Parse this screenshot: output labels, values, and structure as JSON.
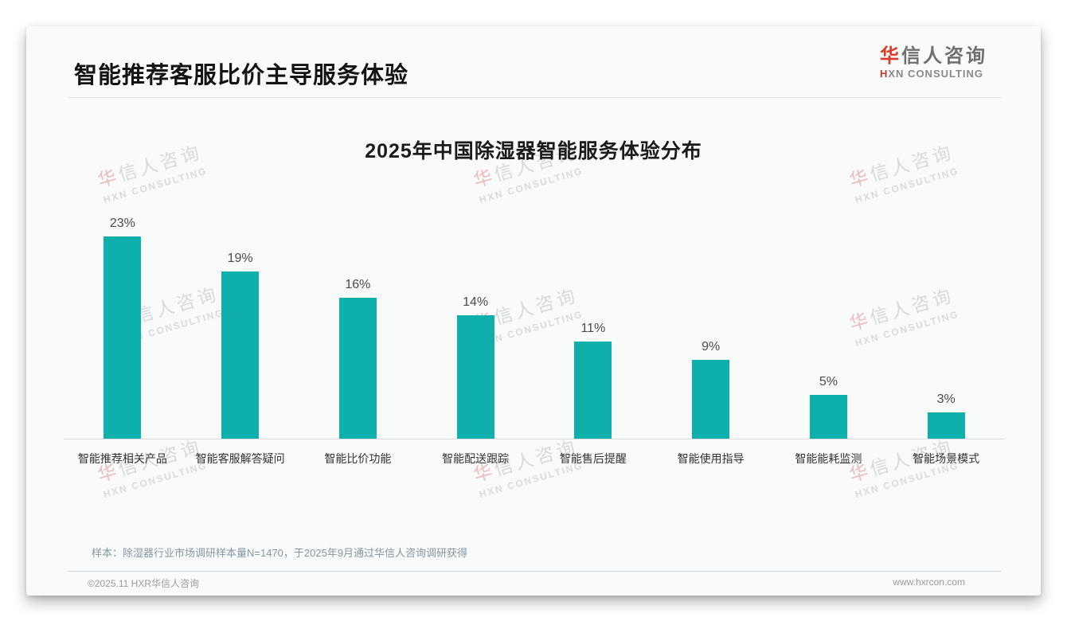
{
  "page": {
    "title": "智能推荐客服比价主导服务体验",
    "logo": {
      "cn_first": "华",
      "cn_rest": "信人咨询",
      "en_first": "H",
      "en_rest": "XN CONSULTING"
    },
    "note": "样本：除湿器行业市场调研样本量N=1470，于2025年9月通过华信人咨询调研获得",
    "footer_left": "©2025.11 HXR华信人咨询",
    "footer_right": "www.hxrcon.com",
    "watermark": {
      "cn_first": "华",
      "cn_rest": "信人咨询",
      "en": "HXN CONSULTING"
    }
  },
  "colors": {
    "bar_teal": "#0fb0ab",
    "accent_red": "#d93a2b"
  },
  "chart_data": {
    "type": "bar",
    "title": "2025年中国除湿器智能服务体验分布",
    "categories": [
      "智能推荐相关产品",
      "智能客服解答疑问",
      "智能比价功能",
      "智能配送跟踪",
      "智能售后提醒",
      "智能使用指导",
      "智能能耗监测",
      "智能场景模式"
    ],
    "values": [
      23,
      19,
      16,
      14,
      11,
      9,
      5,
      3
    ],
    "unit": "%",
    "bar_color": "#0fb0ab",
    "xlabel": "",
    "ylabel": "",
    "ylim": [
      0,
      25
    ],
    "grid": false,
    "legend": false,
    "data_labels": true,
    "axis_line": "bottom-only"
  }
}
